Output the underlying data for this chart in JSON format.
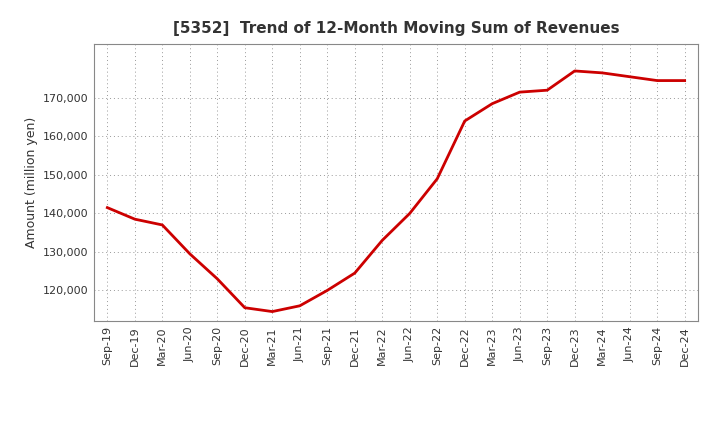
{
  "title": "[5352]  Trend of 12-Month Moving Sum of Revenues",
  "ylabel": "Amount (million yen)",
  "line_color": "#cc0000",
  "line_width": 2.0,
  "background_color": "#ffffff",
  "grid_color": "#999999",
  "ylim": [
    112000,
    184000
  ],
  "yticks": [
    120000,
    130000,
    140000,
    150000,
    160000,
    170000
  ],
  "x_labels": [
    "Sep-19",
    "Dec-19",
    "Mar-20",
    "Jun-20",
    "Sep-20",
    "Dec-20",
    "Mar-21",
    "Jun-21",
    "Sep-21",
    "Dec-21",
    "Mar-22",
    "Jun-22",
    "Sep-22",
    "Dec-22",
    "Mar-23",
    "Jun-23",
    "Sep-23",
    "Dec-23",
    "Mar-24",
    "Jun-24",
    "Sep-24",
    "Dec-24"
  ],
  "values": [
    141500,
    138500,
    137000,
    129500,
    123000,
    115500,
    114500,
    116000,
    120000,
    124500,
    133000,
    140000,
    149000,
    164000,
    168500,
    171500,
    172000,
    177000,
    176500,
    175500,
    174500,
    174500
  ]
}
